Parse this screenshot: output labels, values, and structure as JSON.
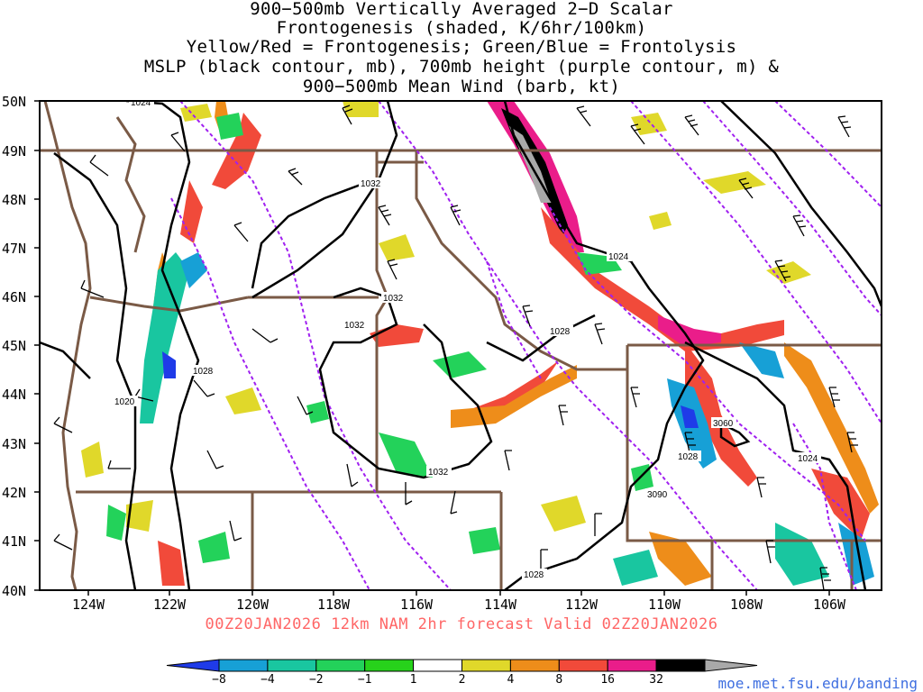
{
  "title_lines": [
    "900−500mb Vertically Averaged 2−D Scalar",
    "Frontogenesis (shaded, K/6hr/100km)",
    "Yellow/Red = Frontogenesis;  Green/Blue = Frontolysis",
    "MSLP (black contour, mb), 700mb height (purple contour, m) &",
    "900−500mb Mean Wind (barb, kt)"
  ],
  "lat_labels": [
    "50N",
    "49N",
    "48N",
    "47N",
    "46N",
    "45N",
    "44N",
    "43N",
    "42N",
    "41N",
    "40N"
  ],
  "lon_labels": [
    "124W",
    "122W",
    "120W",
    "118W",
    "116W",
    "114W",
    "112W",
    "110W",
    "108W",
    "106W"
  ],
  "contour_labels": [
    {
      "text": "1024"
    },
    {
      "text": "1032"
    },
    {
      "text": "1032"
    },
    {
      "text": "1032"
    },
    {
      "text": "1024"
    },
    {
      "text": "1028"
    },
    {
      "text": "1028"
    },
    {
      "text": "1020"
    },
    {
      "text": "3060"
    },
    {
      "text": "1028"
    },
    {
      "text": "1024"
    },
    {
      "text": "1032"
    },
    {
      "text": "3090"
    },
    {
      "text": "1028"
    }
  ],
  "valid_line": "00Z20JAN2026 12km NAM 2hr forecast Valid 02Z20JAN2026",
  "colorbar": {
    "ticks": [
      "−8",
      "−4",
      "−2",
      "−1",
      "1",
      "2",
      "4",
      "8",
      "16",
      "32"
    ],
    "colors": [
      "#1f3be8",
      "#17a0d6",
      "#19c6a0",
      "#23d25a",
      "#27d21b",
      "#ffffff",
      "#e0d82a",
      "#ee8d1a",
      "#f14a3a",
      "#ea1d8a",
      "#000000",
      "#a9a9a9"
    ]
  },
  "credit": "moe.met.fsu.edu/banding",
  "colors": {
    "border": "#7a5a46",
    "mslp": "#000000",
    "height": "#a020f0"
  }
}
